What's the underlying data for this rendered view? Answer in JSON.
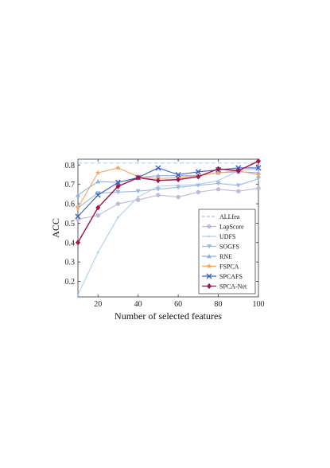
{
  "chart_data": {
    "type": "line",
    "xlabel": "Number of selected features",
    "ylabel": "ACC",
    "xlim": [
      10,
      100
    ],
    "ylim": [
      0.12,
      0.83
    ],
    "xticks": [
      20,
      40,
      60,
      80,
      100
    ],
    "yticks": [
      0.2,
      0.3,
      0.4,
      0.5,
      0.6,
      0.7,
      0.8
    ],
    "x": [
      10,
      20,
      30,
      40,
      50,
      60,
      70,
      80,
      90,
      100
    ],
    "legend_position": "bottom-right",
    "grid": false,
    "series": [
      {
        "name": "ALLfea",
        "color": "#a9c8e6",
        "marker": "none",
        "dashed": true,
        "values": [
          0.81,
          0.81,
          0.81,
          0.81,
          0.81,
          0.81,
          0.81,
          0.81,
          0.81,
          0.81
        ]
      },
      {
        "name": "LapScore",
        "color": "#c2b8d8",
        "marker": "circle",
        "dashed": false,
        "values": [
          0.52,
          0.54,
          0.6,
          0.62,
          0.645,
          0.635,
          0.66,
          0.675,
          0.665,
          0.68
        ]
      },
      {
        "name": "UDFS",
        "color": "#b4cdea",
        "marker": "dot",
        "dashed": false,
        "values": [
          0.13,
          0.35,
          0.53,
          0.635,
          0.69,
          0.695,
          0.7,
          0.72,
          0.77,
          0.78
        ]
      },
      {
        "name": "SOGFS",
        "color": "#9fb8e0",
        "marker": "tri-down",
        "dashed": false,
        "values": [
          0.58,
          0.655,
          0.66,
          0.665,
          0.675,
          0.685,
          0.695,
          0.705,
          0.695,
          0.73
        ]
      },
      {
        "name": "RNE",
        "color": "#8fb0de",
        "marker": "tri-up",
        "dashed": false,
        "values": [
          0.645,
          0.715,
          0.71,
          0.735,
          0.745,
          0.745,
          0.745,
          0.76,
          0.765,
          0.76
        ]
      },
      {
        "name": "FSPCA",
        "color": "#f2a766",
        "marker": "star",
        "dashed": false,
        "values": [
          0.58,
          0.76,
          0.785,
          0.74,
          0.73,
          0.735,
          0.745,
          0.76,
          0.77,
          0.75
        ]
      },
      {
        "name": "SPCAFS",
        "color": "#3b5fc4",
        "marker": "x",
        "dashed": false,
        "values": [
          0.535,
          0.645,
          0.71,
          0.735,
          0.785,
          0.75,
          0.765,
          0.775,
          0.785,
          0.785
        ]
      },
      {
        "name": "SPCA-Net",
        "color": "#a0174f",
        "marker": "diamond",
        "dashed": false,
        "values": [
          0.4,
          0.58,
          0.69,
          0.735,
          0.72,
          0.725,
          0.74,
          0.78,
          0.77,
          0.82
        ]
      }
    ]
  }
}
